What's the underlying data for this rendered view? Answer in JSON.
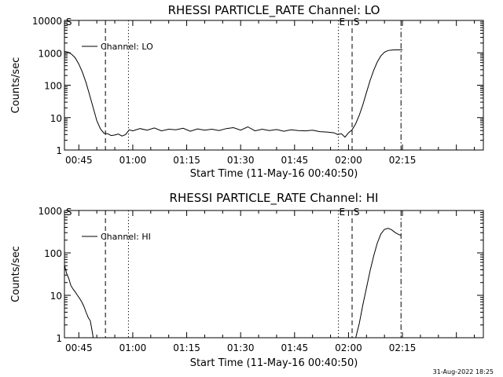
{
  "timestamp": "31-Aug-2022 18:25",
  "chart_data": [
    {
      "type": "line",
      "title": "RHESSI PARTICLE_RATE Channel: LO",
      "xlabel": "Start Time (11-May-16 00:40:50)",
      "ylabel": "Counts/sec",
      "yscale": "log",
      "xlim": [
        41,
        157.5
      ],
      "ylim": [
        1,
        10000
      ],
      "x_ticks": [
        {
          "value": 45,
          "label": "00:45"
        },
        {
          "value": 60,
          "label": "01:00"
        },
        {
          "value": 75,
          "label": "01:15"
        },
        {
          "value": 90,
          "label": "01:30"
        },
        {
          "value": 105,
          "label": "01:45"
        },
        {
          "value": 120,
          "label": "02:00"
        },
        {
          "value": 135,
          "label": "02:15"
        }
      ],
      "y_ticks": [
        {
          "value": 1,
          "label": "1"
        },
        {
          "value": 10,
          "label": "10"
        },
        {
          "value": 100,
          "label": "100"
        },
        {
          "value": 1000,
          "label": "1000"
        },
        {
          "value": 10000,
          "label": "10000"
        }
      ],
      "legend": "Channel: LO",
      "vlines": [
        {
          "x": 52.4,
          "style": "dashed"
        },
        {
          "x": 58.8,
          "style": "dotted"
        },
        {
          "x": 117.2,
          "style": "dotted"
        },
        {
          "x": 121.0,
          "style": "dashed"
        },
        {
          "x": 134.6,
          "style": "dashdot"
        }
      ],
      "markers": [
        {
          "x": 41.4,
          "label": "S"
        },
        {
          "x": 117.4,
          "label": "E"
        },
        {
          "x": 121.4,
          "label": "S"
        }
      ],
      "series": [
        {
          "name": "Channel: LO",
          "x": [
            41,
            42,
            43,
            44,
            45,
            46,
            47,
            48,
            49,
            50,
            51,
            52,
            53,
            54,
            55,
            56,
            57,
            58,
            59,
            60,
            62,
            64,
            66,
            68,
            70,
            72,
            74,
            76,
            78,
            80,
            82,
            84,
            86,
            88,
            90,
            92,
            94,
            96,
            98,
            100,
            102,
            104,
            106,
            108,
            110,
            112,
            114,
            116,
            117,
            118,
            119,
            120,
            121,
            122,
            123,
            124,
            125,
            126,
            127,
            128,
            129,
            130,
            131,
            132,
            133,
            134,
            135
          ],
          "values": [
            1100,
            1050,
            900,
            700,
            450,
            250,
            120,
            50,
            20,
            8,
            4.5,
            3.3,
            3.2,
            2.8,
            2.9,
            3.1,
            2.7,
            3.0,
            4.2,
            3.9,
            4.6,
            4.1,
            4.8,
            3.9,
            4.4,
            4.2,
            4.7,
            3.8,
            4.5,
            4.1,
            4.4,
            4.0,
            4.6,
            4.9,
            4.1,
            5.2,
            3.9,
            4.4,
            4.0,
            4.3,
            3.8,
            4.2,
            4.0,
            3.9,
            4.1,
            3.7,
            3.6,
            3.4,
            3.0,
            3.2,
            2.5,
            3.4,
            4.2,
            6.5,
            12,
            25,
            60,
            140,
            290,
            520,
            800,
            1050,
            1180,
            1220,
            1230,
            1230,
            1230
          ]
        }
      ]
    },
    {
      "type": "line",
      "title": "RHESSI PARTICLE_RATE Channel: HI",
      "xlabel": "Start Time (11-May-16 00:40:50)",
      "ylabel": "Counts/sec",
      "yscale": "log",
      "xlim": [
        41,
        157.5
      ],
      "ylim": [
        1,
        1000
      ],
      "x_ticks": [
        {
          "value": 45,
          "label": "00:45"
        },
        {
          "value": 60,
          "label": "01:00"
        },
        {
          "value": 75,
          "label": "01:15"
        },
        {
          "value": 90,
          "label": "01:30"
        },
        {
          "value": 105,
          "label": "01:45"
        },
        {
          "value": 120,
          "label": "02:00"
        },
        {
          "value": 135,
          "label": "02:15"
        }
      ],
      "y_ticks": [
        {
          "value": 1,
          "label": "1"
        },
        {
          "value": 10,
          "label": "10"
        },
        {
          "value": 100,
          "label": "100"
        },
        {
          "value": 1000,
          "label": "1000"
        }
      ],
      "legend": "Channel: HI",
      "vlines": [
        {
          "x": 52.4,
          "style": "dashed"
        },
        {
          "x": 58.8,
          "style": "dotted"
        },
        {
          "x": 117.2,
          "style": "dotted"
        },
        {
          "x": 121.0,
          "style": "dashed"
        },
        {
          "x": 134.6,
          "style": "dashdot"
        }
      ],
      "markers": [
        {
          "x": 41.4,
          "label": "S"
        },
        {
          "x": 117.4,
          "label": "E"
        },
        {
          "x": 121.4,
          "label": "S"
        }
      ],
      "series": [
        {
          "name": "Channel: HI",
          "x": [
            41,
            41.6,
            42.2,
            42.8,
            43.4,
            44.0,
            44.6,
            45.2,
            45.8,
            46.4,
            47.0,
            47.6,
            48.2,
            48.6,
            49.0
          ],
          "values": [
            52,
            33,
            25,
            17,
            14,
            12,
            10,
            8.5,
            7,
            5.5,
            4,
            3,
            2.5,
            1.6,
            1
          ]
        },
        {
          "name": "Channel: HI",
          "x": [
            122.0,
            123.0,
            124.0,
            125.0,
            126.0,
            127.0,
            128.0,
            129.0,
            130.0,
            131.0,
            132.0,
            133.0,
            134.0,
            134.6
          ],
          "values": [
            1,
            2.2,
            6,
            15,
            38,
            85,
            170,
            280,
            360,
            380,
            350,
            300,
            270,
            260
          ]
        }
      ]
    }
  ]
}
